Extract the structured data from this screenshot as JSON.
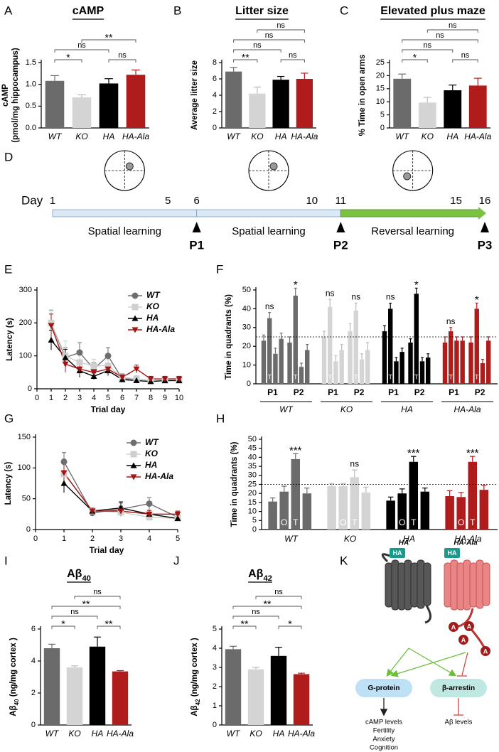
{
  "chart_data": [
    {
      "panel": "A",
      "type": "bar",
      "title": "cAMP",
      "ylabel": [
        "cAMP",
        "(pmol/mg hippocampus)"
      ],
      "categories": [
        "WT",
        "KO",
        "HA",
        "HA-Ala"
      ],
      "values": [
        1.08,
        0.7,
        1.02,
        1.22
      ],
      "errors": [
        0.12,
        0.06,
        0.11,
        0.11
      ],
      "colors": [
        "#6b6b6b",
        "#d4d4d4",
        "#000000",
        "#b01c1c"
      ],
      "ylim": [
        0,
        1.5
      ],
      "yticks": [
        {
          "value": 0,
          "label": "0.0"
        },
        0.5,
        {
          "value": 1,
          "label": "1.0"
        },
        1.5
      ],
      "brackets": [
        {
          "pair": [
            "WT",
            "KO"
          ],
          "label": "*"
        },
        {
          "pair": [
            "HA",
            "HA-Ala"
          ],
          "label": "ns"
        },
        {
          "pair": [
            "WT",
            "HA"
          ],
          "label": "ns"
        },
        {
          "pair": [
            "KO",
            "HA-Ala"
          ],
          "label": "**"
        }
      ]
    },
    {
      "panel": "B",
      "type": "bar",
      "title": "Litter size",
      "ylabel": "Average litter size",
      "categories": [
        "WT",
        "KO",
        "HA",
        "HA-Ala"
      ],
      "values": [
        6.9,
        4.2,
        5.9,
        6.0
      ],
      "errors": [
        0.5,
        0.8,
        0.4,
        0.7
      ],
      "colors": [
        "#6b6b6b",
        "#d4d4d4",
        "#000000",
        "#b01c1c"
      ],
      "ylim": [
        0,
        8
      ],
      "yticks": [
        0,
        2,
        4,
        6,
        8
      ],
      "brackets": [
        {
          "pair": [
            "WT",
            "KO"
          ],
          "label": "**"
        },
        {
          "pair": [
            "HA",
            "HA-Ala"
          ],
          "label": "ns"
        },
        {
          "pair": [
            "WT",
            "HA"
          ],
          "label": "ns"
        },
        {
          "pair": [
            "WT",
            "HA-Ala"
          ],
          "label": "ns"
        },
        {
          "pair": [
            "KO",
            "HA-Ala"
          ],
          "label": "ns"
        }
      ]
    },
    {
      "panel": "C",
      "type": "bar",
      "title": "Elevated plus maze",
      "ylabel": "% Time in open arms",
      "categories": [
        "WT",
        "KO",
        "HA",
        "HA-Ala"
      ],
      "values": [
        18.8,
        9.7,
        14.4,
        16.2
      ],
      "errors": [
        1.8,
        2.0,
        2.0,
        2.8
      ],
      "colors": [
        "#6b6b6b",
        "#d4d4d4",
        "#000000",
        "#b01c1c"
      ],
      "ylim": [
        0,
        25
      ],
      "yticks": [
        0,
        5,
        10,
        15,
        20,
        25
      ],
      "brackets": [
        {
          "pair": [
            "WT",
            "KO"
          ],
          "label": "*"
        },
        {
          "pair": [
            "HA",
            "HA-Ala"
          ],
          "label": "ns"
        },
        {
          "pair": [
            "WT",
            "HA"
          ],
          "label": "ns"
        },
        {
          "pair": [
            "WT",
            "HA-Ala"
          ],
          "label": "ns"
        },
        {
          "pair": [
            "KO",
            "HA-Ala"
          ],
          "label": "ns"
        }
      ]
    },
    {
      "panel": "E",
      "type": "line",
      "xlabel": "Trial day",
      "ylabel": "Latency (s)",
      "x": [
        1,
        2,
        3,
        4,
        5,
        6,
        7,
        8,
        9,
        10
      ],
      "xlim": [
        0,
        10
      ],
      "xticks": [
        0,
        1,
        2,
        3,
        4,
        5,
        6,
        7,
        8,
        9,
        10
      ],
      "ylim": [
        0,
        300
      ],
      "yticks": [
        0,
        100,
        200,
        300
      ],
      "legend": "upper right",
      "series": [
        {
          "name": "WT",
          "color": "#6e6e6e",
          "marker": "circle",
          "values": [
            198,
            95,
            110,
            60,
            100,
            30,
            30,
            25,
            25,
            25
          ],
          "errors": [
            40,
            30,
            30,
            20,
            25,
            10,
            10,
            8,
            8,
            8
          ]
        },
        {
          "name": "KO",
          "color": "#cfcfcf",
          "marker": "square",
          "values": [
            200,
            100,
            80,
            70,
            70,
            35,
            30,
            25,
            25,
            25
          ],
          "errors": [
            40,
            45,
            30,
            20,
            20,
            10,
            10,
            8,
            8,
            8
          ]
        },
        {
          "name": "HA",
          "color": "#000000",
          "marker": "triangle",
          "values": [
            148,
            95,
            55,
            38,
            55,
            28,
            25,
            22,
            25,
            25
          ],
          "errors": [
            30,
            25,
            20,
            10,
            15,
            8,
            8,
            6,
            6,
            6
          ]
        },
        {
          "name": "HA-Ala",
          "color": "#a31515",
          "marker": "triangle-down",
          "values": [
            192,
            75,
            60,
            50,
            60,
            35,
            60,
            30,
            30,
            30
          ],
          "errors": [
            35,
            25,
            20,
            15,
            15,
            10,
            12,
            8,
            8,
            8
          ]
        }
      ]
    },
    {
      "panel": "F",
      "type": "grouped_bar",
      "ylabel": "Time in quadrants (%)",
      "ylim": [
        0,
        50
      ],
      "yticks": [
        0,
        10,
        20,
        30,
        40,
        50
      ],
      "reference_line": 25,
      "bar_labels": [
        null,
        "T",
        null,
        null
      ],
      "groups": [
        {
          "name": "WT",
          "color": "#6b6b6b",
          "subgroups": [
            {
              "name": "P1",
              "values": [
                23,
                35,
                16,
                24
              ],
              "errors": [
                3,
                3,
                3,
                3
              ],
              "annotation": "ns"
            },
            {
              "name": "P2",
              "values": [
                22,
                47,
                9,
                18
              ],
              "errors": [
                3,
                4,
                2,
                3
              ],
              "annotation": "*"
            }
          ]
        },
        {
          "name": "KO",
          "color": "#d4d4d4",
          "subgroups": [
            {
              "name": "P1",
              "values": [
                25,
                41,
                12,
                18
              ],
              "errors": [
                3,
                4,
                3,
                3
              ],
              "annotation": "ns"
            },
            {
              "name": "P2",
              "values": [
                28,
                39,
                13,
                18
              ],
              "errors": [
                4,
                4,
                3,
                4
              ],
              "annotation": "ns"
            }
          ]
        },
        {
          "name": "HA",
          "color": "#000000",
          "subgroups": [
            {
              "name": "P1",
              "values": [
                28,
                40,
                12,
                17
              ],
              "errors": [
                3,
                3,
                2,
                2
              ],
              "annotation": "ns"
            },
            {
              "name": "P2",
              "values": [
                22,
                48,
                12,
                14
              ],
              "errors": [
                2,
                3,
                2,
                2
              ],
              "annotation": "*"
            }
          ]
        },
        {
          "name": "HA-Ala",
          "color": "#b01c1c",
          "subgroups": [
            {
              "name": "P1",
              "values": [
                22,
                28,
                23,
                23
              ],
              "errors": [
                3,
                2,
                2,
                2
              ],
              "annotation": "ns"
            },
            {
              "name": "P2",
              "values": [
                22,
                40,
                11,
                23
              ],
              "errors": [
                3,
                3,
                2,
                2
              ],
              "annotation": "*"
            }
          ]
        }
      ]
    },
    {
      "panel": "G",
      "type": "line",
      "xlabel": "Trial day",
      "ylabel": "Latency (s)",
      "x": [
        1,
        2,
        3,
        4,
        5
      ],
      "xlim": [
        0,
        5
      ],
      "xticks": [
        0,
        1,
        2,
        3,
        4,
        5
      ],
      "ylim": [
        0,
        150
      ],
      "yticks": [
        0,
        50,
        100,
        150
      ],
      "legend": "upper right",
      "series": [
        {
          "name": "WT",
          "color": "#6e6e6e",
          "marker": "circle",
          "values": [
            110,
            27,
            33,
            42,
            20
          ],
          "errors": [
            15,
            5,
            10,
            10,
            5
          ]
        },
        {
          "name": "KO",
          "color": "#cfcfcf",
          "marker": "square",
          "values": [
            90,
            30,
            28,
            20,
            18
          ],
          "errors": [
            25,
            5,
            8,
            5,
            4
          ]
        },
        {
          "name": "HA",
          "color": "#000000",
          "marker": "triangle",
          "values": [
            75,
            30,
            35,
            25,
            18
          ],
          "errors": [
            15,
            5,
            10,
            6,
            4
          ]
        },
        {
          "name": "HA-Ala",
          "color": "#a31515",
          "marker": "triangle-down",
          "values": [
            92,
            30,
            30,
            25,
            25
          ],
          "errors": [
            20,
            5,
            8,
            6,
            5
          ]
        }
      ]
    },
    {
      "panel": "H",
      "type": "grouped_bar",
      "ylabel": "Time in quadrants (%)",
      "ylim": [
        0,
        50
      ],
      "yticks": [
        0,
        5,
        10,
        15,
        20,
        25,
        30,
        35,
        40,
        45,
        50
      ],
      "reference_line": 25,
      "bar_labels": [
        null,
        "O",
        "T",
        null
      ],
      "groups": [
        {
          "name": "WT",
          "color": "#6b6b6b",
          "subgroups": [
            {
              "values": [
                15.5,
                21,
                39,
                20
              ],
              "errors": [
                2,
                3,
                3,
                3
              ],
              "annotation": "***"
            }
          ]
        },
        {
          "name": "KO",
          "color": "#d4d4d4",
          "subgroups": [
            {
              "values": [
                24,
                24,
                29,
                20.5
              ],
              "errors": [
                1.5,
                1.5,
                4,
                3
              ],
              "annotation": "ns"
            }
          ]
        },
        {
          "name": "HA",
          "color": "#000000",
          "subgroups": [
            {
              "values": [
                16,
                20,
                37.5,
                21
              ],
              "errors": [
                2,
                2.5,
                3,
                2
              ],
              "annotation": "***"
            }
          ]
        },
        {
          "name": "HA-Ala",
          "color": "#b01c1c",
          "subgroups": [
            {
              "values": [
                18.5,
                18,
                37.5,
                22
              ],
              "errors": [
                3,
                2.5,
                3,
                2.5
              ],
              "annotation": "***"
            }
          ]
        }
      ]
    },
    {
      "panel": "I",
      "type": "bar",
      "title": {
        "text": "Aβ",
        "sub": "40"
      },
      "ylabel": {
        "text": "Aβ",
        "sub": "40",
        "rest": " (ng/mg cortex )"
      },
      "categories": [
        "WT",
        "KO",
        "HA",
        "HA-Ala"
      ],
      "values": [
        4.8,
        3.6,
        4.9,
        3.35
      ],
      "errors": [
        0.25,
        0.1,
        0.6,
        0.05
      ],
      "colors": [
        "#6b6b6b",
        "#d4d4d4",
        "#000000",
        "#b01c1c"
      ],
      "ylim": [
        0,
        6
      ],
      "yticks": [
        0,
        2,
        4,
        6
      ],
      "brackets": [
        {
          "pair": [
            "WT",
            "KO"
          ],
          "label": "*"
        },
        {
          "pair": [
            "HA",
            "HA-Ala"
          ],
          "label": "**"
        },
        {
          "pair": [
            "WT",
            "HA"
          ],
          "label": "ns"
        },
        {
          "pair": [
            "WT",
            "HA-Ala"
          ],
          "label": "**"
        },
        {
          "pair": [
            "KO",
            "HA-Ala"
          ],
          "label": "ns"
        }
      ]
    },
    {
      "panel": "J",
      "type": "bar",
      "title": {
        "text": "Aβ",
        "sub": "42"
      },
      "ylabel": {
        "text": "Aβ",
        "sub": "42",
        "rest": " (ng/mg cortex )"
      },
      "categories": [
        "WT",
        "KO",
        "HA",
        "HA-Ala"
      ],
      "values": [
        3.95,
        2.9,
        3.6,
        2.65
      ],
      "errors": [
        0.15,
        0.1,
        0.45,
        0.05
      ],
      "colors": [
        "#6b6b6b",
        "#d4d4d4",
        "#000000",
        "#b01c1c"
      ],
      "ylim": [
        0,
        5
      ],
      "yticks": [
        0,
        1,
        2,
        3,
        4,
        5
      ],
      "brackets": [
        {
          "pair": [
            "WT",
            "KO"
          ],
          "label": "**"
        },
        {
          "pair": [
            "HA",
            "HA-Ala"
          ],
          "label": "*"
        },
        {
          "pair": [
            "WT",
            "HA"
          ],
          "label": "ns"
        },
        {
          "pair": [
            "WT",
            "HA-Ala"
          ],
          "label": "**"
        },
        {
          "pair": [
            "KO",
            "HA-Ala"
          ],
          "label": "ns"
        }
      ]
    }
  ],
  "timeline": {
    "panel": "D",
    "day_label": "Day",
    "days": [
      1,
      5,
      6,
      10,
      11,
      15,
      16
    ],
    "phases": [
      {
        "label": "Spatial learning",
        "from": 1,
        "to": 6
      },
      {
        "label": "Spatial learning",
        "from": 6,
        "to": 11
      },
      {
        "label": "Reversal learning",
        "from": 11,
        "to": 16
      }
    ],
    "probes": [
      {
        "label": "P1",
        "day": 6
      },
      {
        "label": "P2",
        "day": 11
      },
      {
        "label": "P3",
        "day": 16
      }
    ]
  },
  "diagram": {
    "panel": "K",
    "receptors": [
      "HA",
      "HA-Ala"
    ],
    "tag": "HA",
    "phospho": "A",
    "effectors": [
      "G-protein",
      "β-arrestin"
    ],
    "g_protein_outputs": [
      "cAMP levels",
      "Fertility",
      "Anxiety",
      "Cognition"
    ],
    "arrestin_output": "Aβ levels"
  }
}
